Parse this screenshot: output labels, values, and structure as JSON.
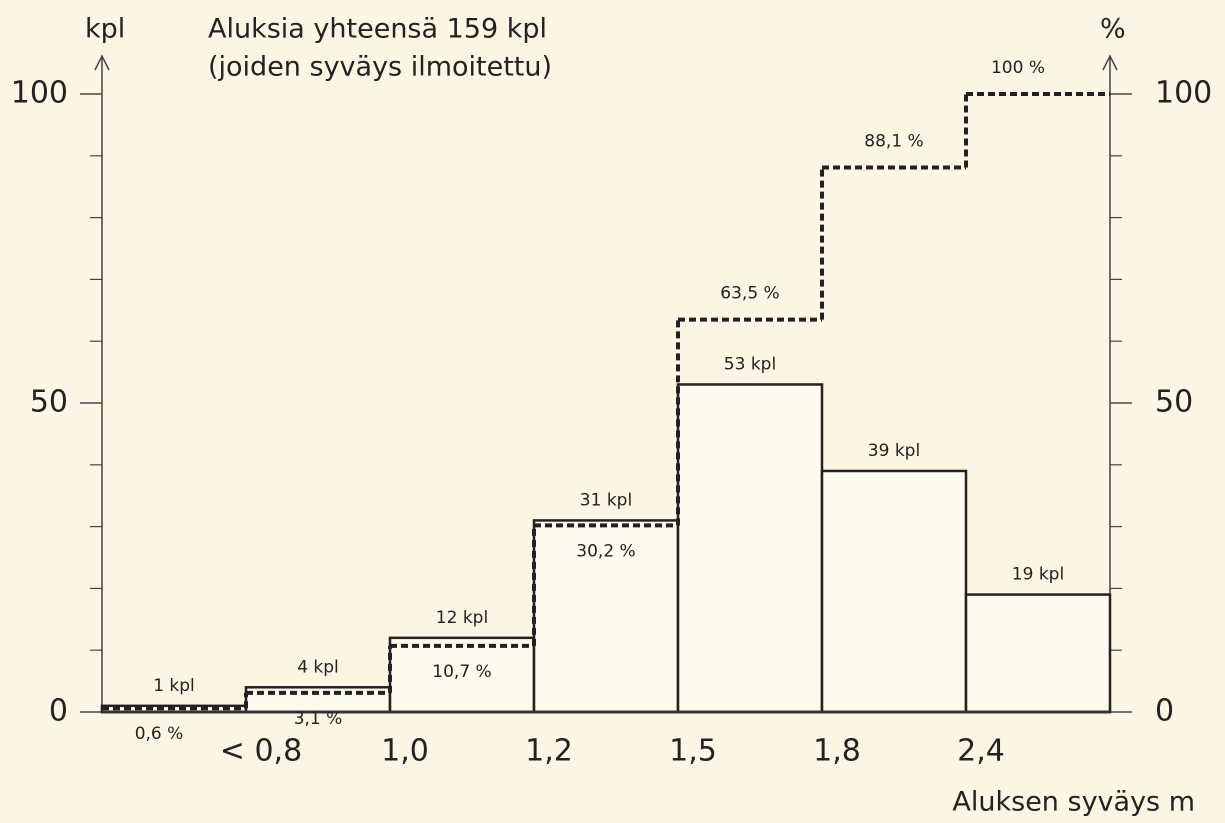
{
  "chart_data": {
    "type": "bar",
    "title": "Aluksia yhteensä 159 kpl",
    "subtitle": "(joiden syväys ilmoitettu)",
    "y_axis_label": "kpl",
    "y2_axis_label": "%",
    "x_axis_label": "Aluksen syväys m",
    "boundary_labels": [
      "< 0,8",
      "1,0",
      "1,2",
      "1,5",
      "1,8",
      "2,4"
    ],
    "series": [
      {
        "name": "kpl",
        "color": "#222222",
        "values": [
          1,
          4,
          12,
          31,
          53,
          39,
          19
        ],
        "value_labels": [
          "1 kpl",
          "4 kpl",
          "12 kpl",
          "31 kpl",
          "53 kpl",
          "39 kpl",
          "19 kpl"
        ]
      },
      {
        "name": "%",
        "color": "#222222",
        "axis": "y2",
        "style": "dashed-step",
        "values": [
          0.6,
          3.1,
          10.7,
          30.2,
          63.5,
          88.1,
          100
        ],
        "value_labels": [
          "0,6 %",
          "3,1 %",
          "10,7 %",
          "30,2 %",
          "63,5 %",
          "88,1 %",
          "100 %"
        ]
      }
    ],
    "ylim": [
      0,
      100
    ],
    "yticks": [
      0,
      50,
      100
    ],
    "yminorticks": [
      10,
      20,
      30,
      40,
      60,
      70,
      80,
      90
    ],
    "y2lim": [
      0,
      100
    ],
    "y2ticks": [
      0,
      50,
      100
    ],
    "y2minorticks": [
      10,
      20,
      30,
      40,
      60,
      70,
      80,
      90
    ]
  }
}
